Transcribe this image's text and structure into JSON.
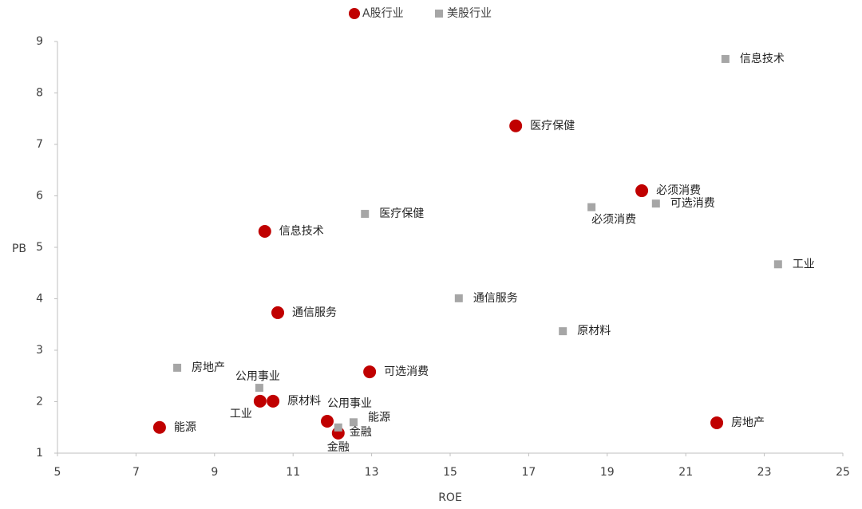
{
  "chart_data": {
    "type": "scatter",
    "xlabel": "ROE",
    "ylabel": "PB",
    "xlim": [
      5,
      25
    ],
    "xticks": [
      5,
      7,
      9,
      11,
      13,
      15,
      17,
      19,
      21,
      23,
      25
    ],
    "ylim": [
      1,
      9
    ],
    "yticks": [
      1,
      2,
      3,
      4,
      5,
      6,
      7,
      8,
      9
    ],
    "grid": false,
    "legend": "top",
    "series": [
      {
        "name": "A股行业",
        "color": "#c00000",
        "marker": "circle",
        "labels": [
          "医疗保健",
          "必须消费",
          "信息技术",
          "通信服务",
          "可选消费",
          "工业",
          "原材料",
          "公用事业",
          "金融",
          "能源",
          "房地产"
        ],
        "x": [
          16.67,
          19.88,
          10.28,
          10.61,
          12.95,
          10.16,
          10.49,
          11.87,
          12.15,
          7.6,
          21.79
        ],
        "values": [
          7.36,
          6.1,
          5.31,
          3.73,
          2.58,
          2.01,
          2.01,
          1.62,
          1.39,
          1.5,
          1.59
        ]
      },
      {
        "name": "美股行业",
        "color": "#a6a6a6",
        "marker": "square",
        "labels": [
          "信息技术",
          "必须消费",
          "可选消费",
          "医疗保健",
          "工业",
          "通信服务",
          "原材料",
          "房地产",
          "公用事业",
          "能源",
          "金融"
        ],
        "x": [
          22.01,
          18.6,
          20.24,
          12.83,
          23.35,
          15.22,
          17.87,
          8.05,
          10.14,
          12.54,
          12.15
        ],
        "values": [
          8.66,
          5.78,
          5.85,
          5.65,
          4.67,
          4.01,
          3.37,
          2.66,
          2.27,
          1.6,
          1.5
        ]
      }
    ]
  }
}
